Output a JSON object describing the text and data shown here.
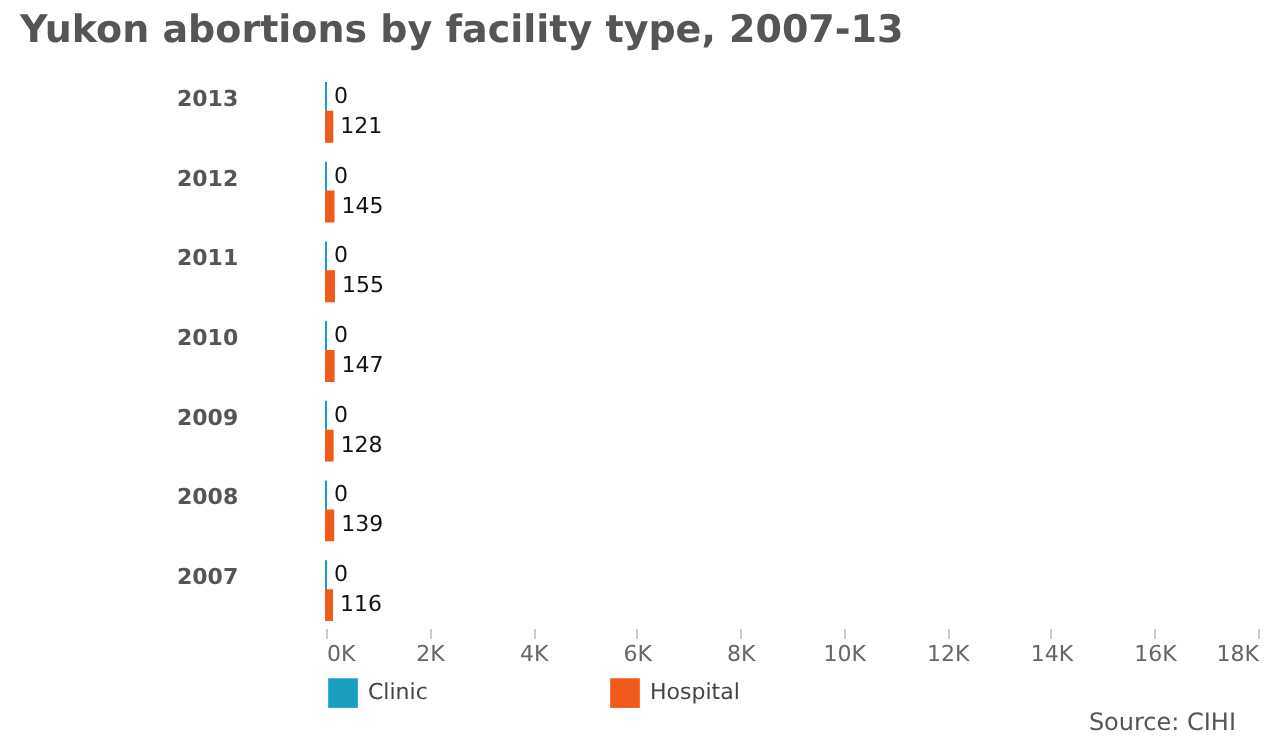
{
  "chart_data": {
    "type": "bar",
    "orientation": "horizontal",
    "title": "Yukon abortions by facility type, 2007-13",
    "categories": [
      "2013",
      "2012",
      "2011",
      "2010",
      "2009",
      "2008",
      "2007"
    ],
    "series": [
      {
        "name": "Clinic",
        "color": "#1a9fc0",
        "values": [
          0,
          0,
          0,
          0,
          0,
          0,
          0
        ]
      },
      {
        "name": "Hospital",
        "color": "#f05a1a",
        "values": [
          121,
          145,
          155,
          147,
          128,
          139,
          116
        ]
      }
    ],
    "xlim": [
      0,
      18000
    ],
    "xticks": [
      {
        "value": 0,
        "label": "0K"
      },
      {
        "value": 2000,
        "label": "2K"
      },
      {
        "value": 4000,
        "label": "4K"
      },
      {
        "value": 6000,
        "label": "6K"
      },
      {
        "value": 8000,
        "label": "8K"
      },
      {
        "value": 10000,
        "label": "10K"
      },
      {
        "value": 12000,
        "label": "12K"
      },
      {
        "value": 14000,
        "label": "14K"
      },
      {
        "value": 16000,
        "label": "16K"
      },
      {
        "value": 18000,
        "label": "18K"
      }
    ],
    "data_labels": true,
    "legend": "bottom left",
    "grid": false,
    "annotations": [
      "Source: CIHI"
    ]
  }
}
